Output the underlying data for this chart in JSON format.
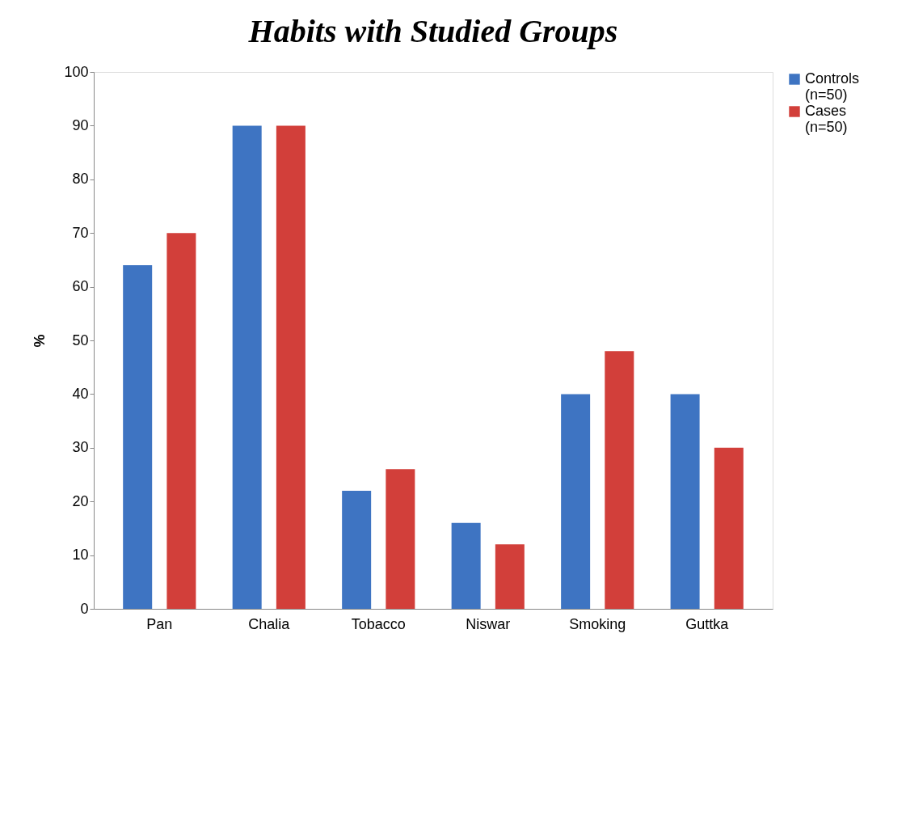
{
  "chart_data": {
    "type": "bar",
    "title": "Habits with Studied Groups",
    "ylabel": "%",
    "categories": [
      "Pan",
      "Chalia",
      "Tobacco",
      "Niswar",
      "Smoking",
      "Guttka"
    ],
    "series": [
      {
        "name": "Controls (n=50)",
        "color": "#3e74c2",
        "values": [
          64,
          90,
          22,
          16,
          40,
          40
        ]
      },
      {
        "name": "Cases (n=50)",
        "color": "#d23f3a",
        "values": [
          70,
          90,
          26,
          12,
          48,
          30
        ]
      }
    ],
    "ylim": [
      0,
      100
    ],
    "yticks": [
      0,
      10,
      20,
      30,
      40,
      50,
      60,
      70,
      80,
      90,
      100
    ],
    "grid": false,
    "legend": "right"
  }
}
